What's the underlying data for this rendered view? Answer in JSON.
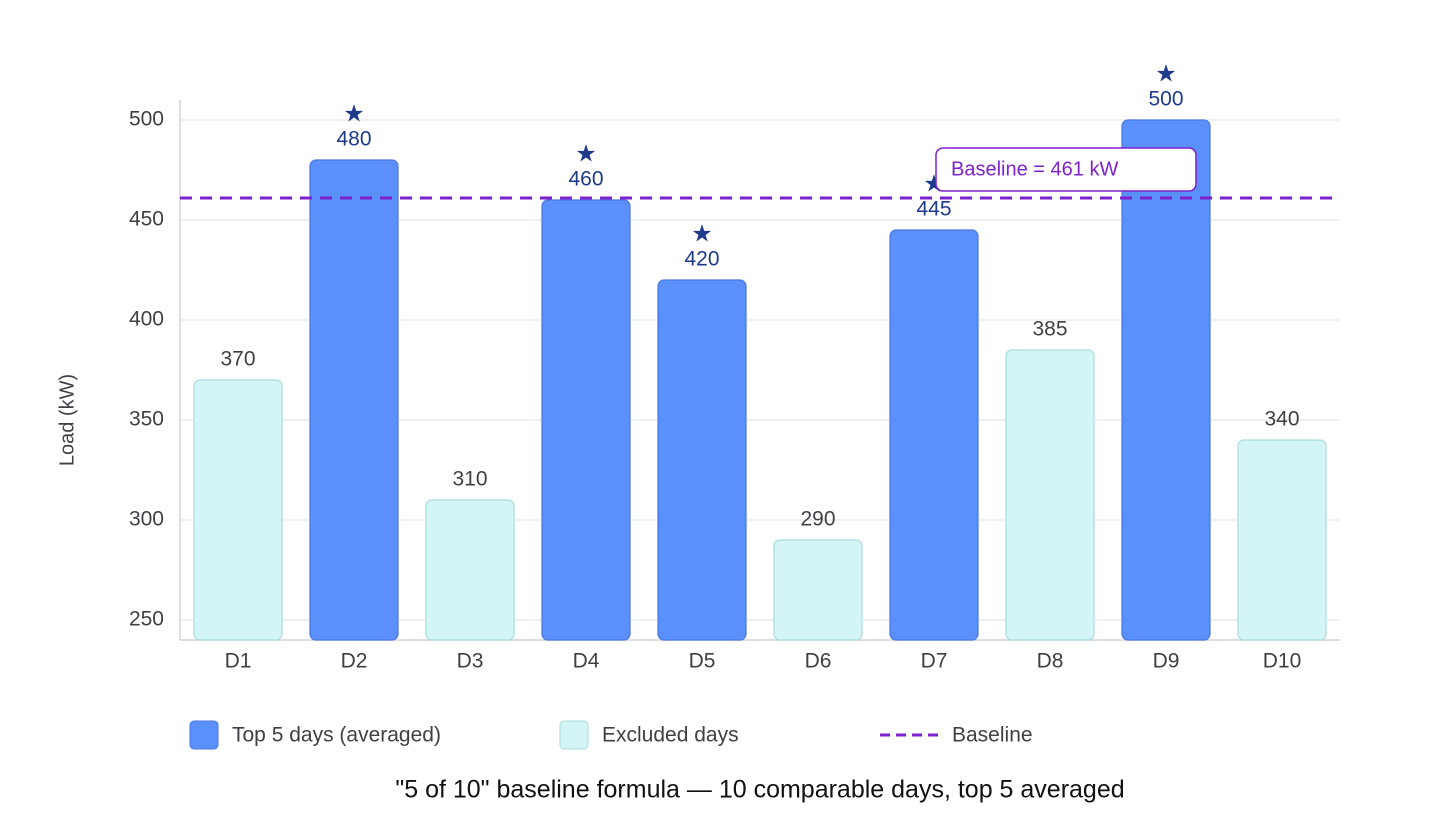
{
  "chart_data": {
    "type": "bar",
    "title": "\"5 of 10\" baseline formula — 10 comparable days, top 5 averaged",
    "ylabel": "Load (kW)",
    "xlabel": "",
    "ylim": [
      240,
      510
    ],
    "yticks": [
      250,
      300,
      350,
      400,
      450,
      500
    ],
    "grid": true,
    "legend_position": "bottom",
    "categories": [
      "D1",
      "D2",
      "D3",
      "D4",
      "D5",
      "D6",
      "D7",
      "D8",
      "D9",
      "D10"
    ],
    "values": [
      370,
      480,
      310,
      460,
      420,
      290,
      445,
      385,
      500,
      340
    ],
    "selected": [
      false,
      true,
      false,
      true,
      true,
      false,
      true,
      false,
      true,
      false
    ],
    "value_labels": [
      "370",
      "480",
      "310",
      "460",
      "420",
      "290",
      "445",
      "385",
      "500",
      "340"
    ],
    "selected_marker": "★",
    "baseline": {
      "value": 461,
      "label": "Baseline = 461 kW"
    },
    "legend": {
      "top": "Top 5 days (averaged)",
      "excluded": "Excluded days",
      "baseline": "Baseline"
    },
    "colors": {
      "top_fill": "#5b8ff9",
      "top_stroke": "#4a78e0",
      "top_label": "#1e3a8a",
      "excluded_fill": "#d4f5f5",
      "excluded_stroke": "#a7dede",
      "excluded_label": "#3f3f46",
      "baseline": "#7e22ce",
      "grid": "#e5e7eb",
      "axis": "#d4d4d8"
    }
  }
}
